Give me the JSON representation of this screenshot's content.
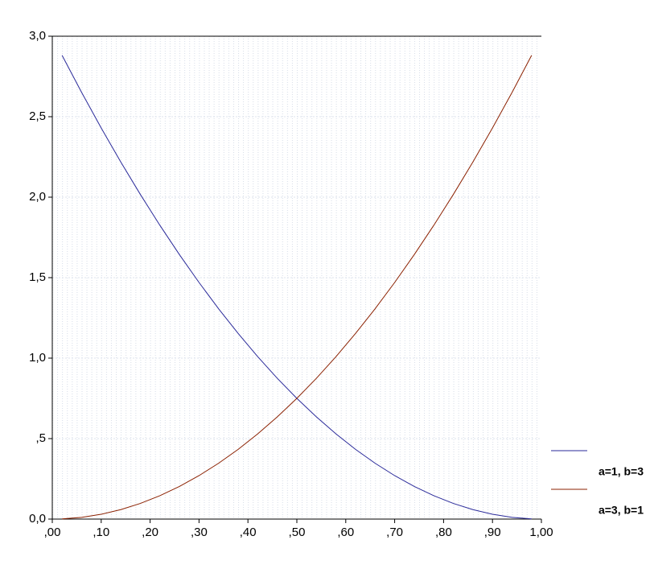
{
  "chart_data": {
    "type": "line",
    "x": [
      0.02,
      0.06,
      0.1,
      0.14,
      0.18,
      0.22,
      0.26,
      0.3,
      0.34,
      0.38,
      0.42,
      0.46,
      0.5,
      0.54,
      0.58,
      0.62,
      0.66,
      0.7,
      0.74,
      0.78,
      0.82,
      0.86,
      0.9,
      0.94,
      0.98
    ],
    "series": [
      {
        "name": "a=1, b=3",
        "color": "#2a2a9a",
        "values": [
          2.8812,
          2.6508,
          2.43,
          2.2188,
          2.0172,
          1.8252,
          1.6428,
          1.47,
          1.3068,
          1.1532,
          1.0092,
          0.8748,
          0.75,
          0.6348,
          0.5292,
          0.4332,
          0.3468,
          0.27,
          0.2028,
          0.1452,
          0.0972,
          0.0588,
          0.03,
          0.0108,
          0.0012
        ]
      },
      {
        "name": "a=3, b=1",
        "color": "#8b2000",
        "values": [
          0.0012,
          0.0108,
          0.03,
          0.0588,
          0.0972,
          0.1452,
          0.2028,
          0.27,
          0.3468,
          0.4332,
          0.5292,
          0.6348,
          0.75,
          0.8748,
          1.0092,
          1.1532,
          1.3068,
          1.47,
          1.6428,
          1.8252,
          2.0172,
          2.2188,
          2.43,
          2.6508,
          2.8812
        ]
      }
    ],
    "xlim": [
      0,
      1
    ],
    "ylim": [
      0,
      3
    ],
    "xticks": [
      {
        "value": 0,
        "label": ",00"
      },
      {
        "value": 0.1,
        "label": ",10"
      },
      {
        "value": 0.2,
        "label": ",20"
      },
      {
        "value": 0.3,
        "label": ",30"
      },
      {
        "value": 0.4,
        "label": ",40"
      },
      {
        "value": 0.5,
        "label": ",50"
      },
      {
        "value": 0.6,
        "label": ",60"
      },
      {
        "value": 0.7,
        "label": ",70"
      },
      {
        "value": 0.8,
        "label": ",80"
      },
      {
        "value": 0.9,
        "label": ",90"
      },
      {
        "value": 1,
        "label": "1,00"
      }
    ],
    "yticks": [
      {
        "value": 0,
        "label": "0,0"
      },
      {
        "value": 0.5,
        "label": ",5"
      },
      {
        "value": 1,
        "label": "1,0"
      },
      {
        "value": 1.5,
        "label": "1,5"
      },
      {
        "value": 2,
        "label": "2,0"
      },
      {
        "value": 2.5,
        "label": "2,5"
      },
      {
        "value": 3,
        "label": "3,0"
      }
    ],
    "grid": true,
    "legend": "right"
  }
}
